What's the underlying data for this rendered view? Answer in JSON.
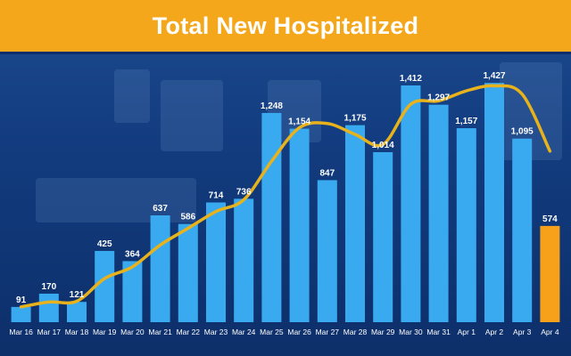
{
  "title": "Total New Hospitalized",
  "colors": {
    "banner": "#f5a71b",
    "bar": "#3aaaf0",
    "bar_highlight": "#f7a11a",
    "trend_line": "#e8b21c",
    "label": "#ffffff"
  },
  "chart_data": {
    "type": "bar",
    "title": "Total New Hospitalized",
    "xlabel": "",
    "ylabel": "",
    "ylim": [
      0,
      1550
    ],
    "grid": false,
    "legend": "none",
    "categories": [
      "Mar 16",
      "Mar 17",
      "Mar 18",
      "Mar 19",
      "Mar 20",
      "Mar 21",
      "Mar 22",
      "Mar 23",
      "Mar 24",
      "Mar 25",
      "Mar 26",
      "Mar 27",
      "Mar 28",
      "Mar 29",
      "Mar 30",
      "Mar 31",
      "Apr 1",
      "Apr 2",
      "Apr 3",
      "Apr 4"
    ],
    "values": [
      91,
      170,
      121,
      425,
      364,
      637,
      586,
      714,
      736,
      1248,
      1154,
      847,
      1175,
      1014,
      1412,
      1297,
      1157,
      1427,
      1095,
      574
    ],
    "value_labels": [
      "91",
      "170",
      "121",
      "425",
      "364",
      "637",
      "586",
      "714",
      "736",
      "1,248",
      "1,154",
      "847",
      "1,175",
      "1,014",
      "1,412",
      "1,297",
      "1,157",
      "1,427",
      "1,095",
      "574"
    ],
    "highlighted_category": "Apr 4",
    "trend_line": {
      "values": [
        91,
        120,
        125,
        260,
        330,
        460,
        560,
        660,
        730,
        960,
        1160,
        1185,
        1120,
        1060,
        1300,
        1320,
        1380,
        1410,
        1360,
        1020
      ]
    }
  }
}
